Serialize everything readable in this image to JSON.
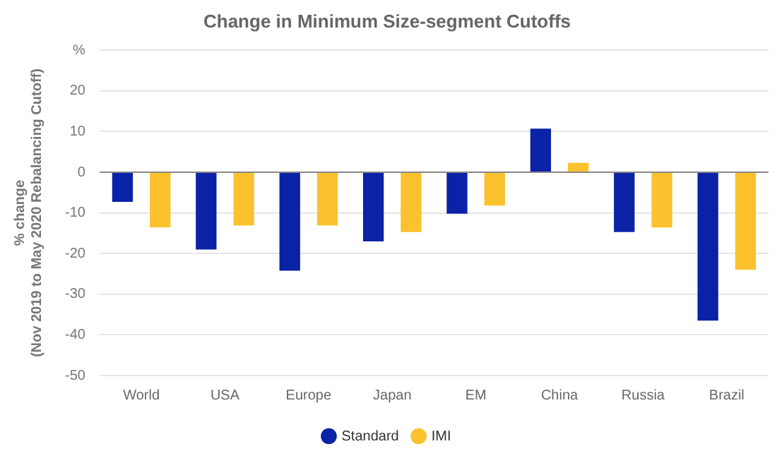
{
  "chart_data": {
    "type": "bar",
    "title": "Change in Minimum Size-segment Cutoffs",
    "ylabel": "% change\n(Nov 2019 to May 2020 Rebalancing Cutoff)",
    "categories": [
      "World",
      "USA",
      "Europe",
      "Japan",
      "EM",
      "China",
      "Russia",
      "Brazil"
    ],
    "series": [
      {
        "name": "Standard",
        "color": "#0a22a6",
        "values": [
          -7.3,
          -19,
          -24.2,
          -17,
          -10.2,
          10.7,
          -14.7,
          -36.5
        ]
      },
      {
        "name": "IMI",
        "color": "#fbc22d",
        "values": [
          -13.6,
          -13.1,
          -13.1,
          -14.7,
          -8.2,
          2.3,
          -13.6,
          -24
        ]
      }
    ],
    "ylim": [
      -50,
      30
    ],
    "yticks": [
      -50,
      -40,
      -30,
      -20,
      -10,
      0,
      10,
      20,
      {
        "value": 30,
        "label": "%"
      }
    ],
    "grid": "y",
    "legend": "bottom"
  }
}
